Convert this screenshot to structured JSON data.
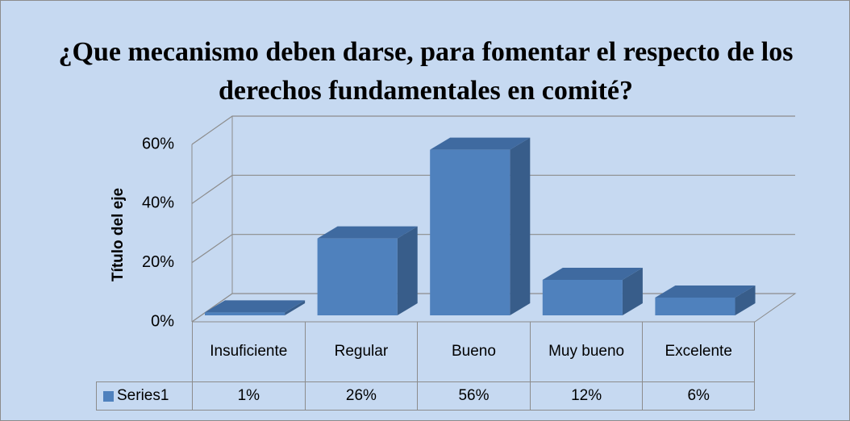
{
  "chart_data": {
    "type": "bar3d",
    "title": "¿Que mecanismo deben darse, para fomentar el respecto de los derechos fundamentales en  comité?",
    "y_axis_label": "Título del eje",
    "categories": [
      "Insuficiente",
      "Regular",
      "Bueno",
      "Muy bueno",
      "Excelente"
    ],
    "series": [
      {
        "name": "Series1",
        "color": "#4f81bd",
        "values": [
          1,
          26,
          56,
          12,
          6
        ],
        "value_labels": [
          "1%",
          "26%",
          "56%",
          "12%",
          "6%"
        ]
      }
    ],
    "ylim": [
      0,
      60
    ],
    "yticks": [
      {
        "value": 0,
        "label": "0%"
      },
      {
        "value": 20,
        "label": "20%"
      },
      {
        "value": 40,
        "label": "40%"
      },
      {
        "value": 60,
        "label": "60%"
      }
    ],
    "grid": true,
    "data_table": true
  }
}
